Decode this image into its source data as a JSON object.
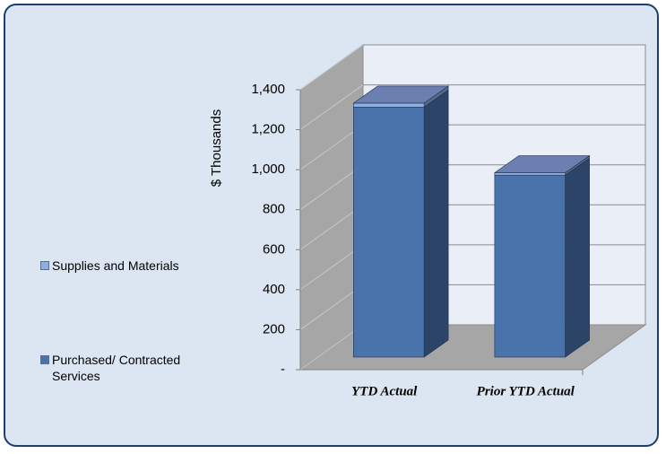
{
  "chart_data": {
    "type": "bar3d_stacked",
    "categories": [
      "YTD Actual",
      "Prior YTD Actual"
    ],
    "series": [
      {
        "name": "Purchased/ Contracted Services",
        "color": "#4a72ab",
        "values": [
          1250,
          910
        ]
      },
      {
        "name": "Supplies and Materials",
        "color": "#8fb0de",
        "values": [
          20,
          12
        ]
      }
    ],
    "y_axis_label": "$ Thousands",
    "ylim": [
      0,
      1400
    ],
    "yticks": [
      {
        "value": 0,
        "label": "-"
      },
      200,
      400,
      600,
      800,
      {
        "value": 1000,
        "label": "1,000"
      },
      {
        "value": 1200,
        "label": "1,200"
      },
      {
        "value": 1400,
        "label": "1,400"
      }
    ],
    "grid": true,
    "legend": "left"
  }
}
